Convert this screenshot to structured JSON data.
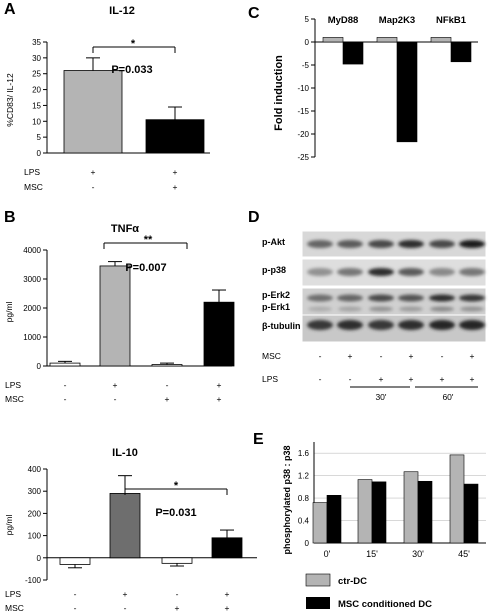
{
  "figure": {
    "panel_labels": [
      "A",
      "B",
      "C",
      "D",
      "E"
    ],
    "colors": {
      "light_gray": "#b4b4b4",
      "dark_gray": "#6e6e6e",
      "black": "#000000",
      "white": "#ffffff"
    }
  },
  "chart_data": [
    {
      "panel": "A",
      "type": "bar",
      "title": "IL-12",
      "ylabel": "%CD83/ IL-12",
      "ylim": [
        0,
        35
      ],
      "yticks": [
        "0",
        "5",
        "10",
        "15",
        "20",
        "25",
        "30",
        "35"
      ],
      "values": [
        26,
        10.5
      ],
      "errors": [
        4,
        4
      ],
      "colors": [
        "#b4b4b4",
        "#000000"
      ],
      "condition_labels": [
        "LPS",
        "MSC"
      ],
      "conditions": [
        [
          "+",
          "+"
        ],
        [
          "-",
          "+"
        ]
      ],
      "significance": {
        "stars": "*",
        "pvalue": "P=0.033"
      }
    },
    {
      "panel": "B",
      "type": "bar",
      "title": "TNFα",
      "ylabel": "pg/ml",
      "ylim": [
        0,
        4000
      ],
      "yticks": [
        "0",
        "1000",
        "2000",
        "3000",
        "4000"
      ],
      "values": [
        100,
        3450,
        50,
        2200
      ],
      "errors": [
        60,
        150,
        50,
        420
      ],
      "colors": [
        "#ffffff",
        "#b4b4b4",
        "#ffffff",
        "#000000"
      ],
      "condition_labels": [
        "LPS",
        "MSC"
      ],
      "conditions": [
        [
          "-",
          "+",
          "-",
          "+"
        ],
        [
          "-",
          "-",
          "+",
          "+"
        ]
      ],
      "significance": {
        "stars": "**",
        "pvalue": "P=0.007"
      }
    },
    {
      "panel": "B",
      "type": "bar",
      "title": "IL-10",
      "ylabel": "pg/ml",
      "ylim": [
        -100,
        400
      ],
      "yticks": [
        "-100",
        "0",
        "100",
        "200",
        "300",
        "400"
      ],
      "values": [
        -30,
        290,
        -25,
        90
      ],
      "errors": [
        15,
        80,
        12,
        35
      ],
      "colors": [
        "#ffffff",
        "#6e6e6e",
        "#ffffff",
        "#000000"
      ],
      "condition_labels": [
        "LPS",
        "MSC"
      ],
      "conditions": [
        [
          "-",
          "+",
          "-",
          "+"
        ],
        [
          "-",
          "-",
          "+",
          "+"
        ]
      ],
      "significance": {
        "stars": "*",
        "pvalue": "P=0.031"
      }
    },
    {
      "panel": "C",
      "type": "bar",
      "ylabel": "Fold induction",
      "ylim": [
        -25,
        5
      ],
      "yticks": [
        "-25",
        "-20",
        "-15",
        "-10",
        "-5",
        "0",
        "5"
      ],
      "categories": [
        "MyD88",
        "Map2K3",
        "NFkB1"
      ],
      "series": [
        {
          "values": [
            1,
            1,
            1
          ],
          "color": "#b4b4b4"
        },
        {
          "values": [
            -4.8,
            -21.7,
            -4.3
          ],
          "color": "#000000"
        }
      ]
    },
    {
      "panel": "E",
      "type": "bar",
      "ylabel": "phosphorylated p38 : p38",
      "ylim": [
        0,
        1.8
      ],
      "yticks": [
        "0",
        "0.4",
        "0.8",
        "1.2",
        "1.6"
      ],
      "categories": [
        "0'",
        "15'",
        "30'",
        "45'"
      ],
      "series": [
        {
          "name": "ctr-DC",
          "values": [
            0.72,
            1.13,
            1.27,
            1.57
          ],
          "color": "#b4b4b4"
        },
        {
          "name": "MSC conditioned DC",
          "values": [
            0.85,
            1.09,
            1.1,
            1.05
          ],
          "color": "#000000"
        }
      ]
    }
  ],
  "blot": {
    "rows": [
      "p-Akt",
      "p-p38",
      "p-Erk2",
      "p-Erk1",
      "β-tubulin"
    ],
    "condition_labels": [
      "MSC",
      "LPS"
    ],
    "msc": [
      "-",
      "+",
      "-",
      "+",
      "-",
      "+"
    ],
    "lps": [
      "-",
      "-",
      "+",
      "+",
      "+",
      "+"
    ],
    "time_labels": [
      "30'",
      "60'"
    ]
  }
}
